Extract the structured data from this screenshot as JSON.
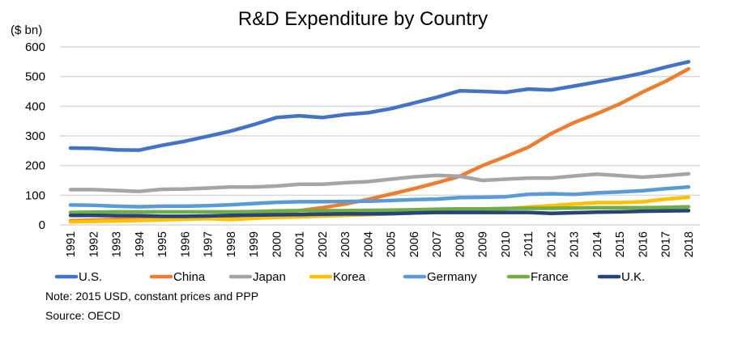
{
  "chart_data": {
    "type": "line",
    "title": "R&D Expenditure by Country",
    "ylabel": "($ bn)",
    "xlabel": "",
    "ylim": [
      0,
      600
    ],
    "yticks": [
      0,
      100,
      200,
      300,
      400,
      500,
      600
    ],
    "grid": true,
    "legend_position": "bottom",
    "x": [
      "1991",
      "1992",
      "1993",
      "1994",
      "1995",
      "1996",
      "1997",
      "1998",
      "1999",
      "2000",
      "2001",
      "2002",
      "2003",
      "2004",
      "2005",
      "2006",
      "2007",
      "2008",
      "2009",
      "2010",
      "2011",
      "2012",
      "2013",
      "2014",
      "2015",
      "2016",
      "2017",
      "2018"
    ],
    "series": [
      {
        "name": "U.S.",
        "color": "#4472C4",
        "values": [
          259,
          258,
          253,
          252,
          268,
          282,
          299,
          316,
          338,
          362,
          368,
          362,
          372,
          378,
          392,
          411,
          430,
          452,
          450,
          447,
          458,
          455,
          468,
          482,
          496,
          512,
          532,
          550
        ]
      },
      {
        "name": "China",
        "color": "#ED7D31",
        "values": [
          14,
          16,
          18,
          20,
          22,
          24,
          26,
          28,
          33,
          40,
          48,
          58,
          70,
          86,
          104,
          122,
          142,
          164,
          200,
          230,
          262,
          308,
          345,
          375,
          408,
          448,
          484,
          526
        ]
      },
      {
        "name": "Japan",
        "color": "#A5A5A5",
        "values": [
          119,
          119,
          116,
          113,
          120,
          121,
          124,
          128,
          128,
          131,
          137,
          137,
          142,
          146,
          154,
          162,
          167,
          164,
          150,
          154,
          158,
          158,
          165,
          171,
          166,
          161,
          166,
          172
        ]
      },
      {
        "name": "Korea",
        "color": "#FFC000",
        "values": [
          10,
          12,
          13,
          15,
          17,
          19,
          21,
          18,
          22,
          25,
          27,
          30,
          32,
          35,
          38,
          42,
          45,
          46,
          50,
          54,
          60,
          65,
          70,
          75,
          75,
          78,
          87,
          93
        ]
      },
      {
        "name": "Germany",
        "color": "#5B9BD5",
        "values": [
          67,
          66,
          63,
          61,
          63,
          63,
          65,
          68,
          72,
          76,
          78,
          78,
          79,
          80,
          82,
          85,
          87,
          92,
          93,
          95,
          103,
          105,
          103,
          108,
          111,
          115,
          122,
          128
        ]
      },
      {
        "name": "France",
        "color": "#70AD47",
        "values": [
          42,
          43,
          44,
          44,
          44,
          44,
          44,
          44,
          45,
          47,
          48,
          48,
          48,
          49,
          50,
          51,
          53,
          54,
          54,
          55,
          56,
          56,
          57,
          58,
          58,
          58,
          59,
          61
        ]
      },
      {
        "name": "U.K.",
        "color": "#264478",
        "values": [
          32,
          32,
          31,
          31,
          29,
          29,
          30,
          32,
          33,
          34,
          35,
          36,
          37,
          37,
          38,
          40,
          42,
          42,
          42,
          42,
          42,
          39,
          41,
          43,
          44,
          46,
          47,
          48
        ]
      }
    ]
  },
  "notes": {
    "note": "Note: 2015 USD, constant prices and PPP",
    "source": "Source: OECD"
  }
}
